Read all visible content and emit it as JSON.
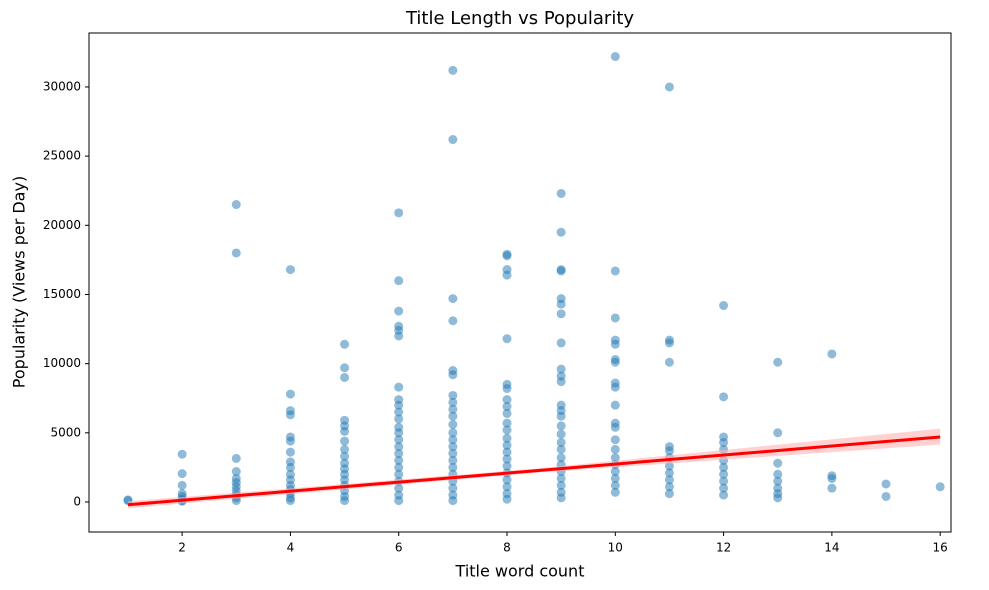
{
  "chart_data": {
    "type": "scatter",
    "title": "Title Length vs Popularity",
    "x_label": "Title word count",
    "y_label": "Popularity (Views per Day)",
    "color": "#1f77b4",
    "xlim": [
      0.28,
      16.2
    ],
    "ylim": [
      -2170,
      33900
    ],
    "xticks": [
      2,
      4,
      6,
      8,
      10,
      12,
      14,
      16
    ],
    "yticks": [
      0,
      5000,
      10000,
      15000,
      20000,
      25000,
      30000
    ],
    "x": [
      1,
      1,
      2,
      2,
      2,
      2,
      2,
      2,
      2,
      2,
      3,
      3,
      3,
      3,
      3,
      3,
      3,
      3,
      3,
      3,
      3,
      4,
      4,
      4,
      4,
      4,
      4,
      4,
      4,
      4,
      4,
      4,
      4,
      4,
      4,
      4,
      4,
      5,
      5,
      5,
      5,
      5,
      5,
      5,
      5,
      5,
      5,
      5,
      5,
      5,
      5,
      5,
      5,
      5,
      6,
      6,
      6,
      6,
      6,
      6,
      6,
      6,
      6,
      6,
      6,
      6,
      6,
      6,
      6,
      6,
      6,
      6,
      6,
      6,
      6,
      6,
      6,
      7,
      7,
      7,
      7,
      7,
      7,
      7,
      7,
      7,
      7,
      7,
      7,
      7,
      7,
      7,
      7,
      7,
      7,
      7,
      7,
      7,
      7,
      8,
      8,
      8,
      8,
      8,
      8,
      8,
      8,
      8,
      8,
      8,
      8,
      8,
      8,
      8,
      8,
      8,
      8,
      8,
      8,
      8,
      8,
      9,
      9,
      9,
      9,
      9,
      9,
      9,
      9,
      9,
      9,
      9,
      9,
      9,
      9,
      9,
      9,
      9,
      9,
      9,
      9,
      9,
      9,
      9,
      9,
      9,
      10,
      10,
      10,
      10,
      10,
      10,
      10,
      10,
      10,
      10,
      10,
      10,
      10,
      10,
      10,
      10,
      10,
      10,
      10,
      10,
      11,
      11,
      11,
      11,
      11,
      11,
      11,
      11,
      11,
      11,
      11,
      11,
      12,
      12,
      12,
      12,
      12,
      12,
      12,
      12,
      12,
      12,
      12,
      13,
      13,
      13,
      13,
      13,
      13,
      13,
      13,
      14,
      14,
      14,
      14,
      15,
      15,
      16
    ],
    "values": [
      150,
      100,
      3450,
      2050,
      1200,
      600,
      400,
      200,
      100,
      50,
      21500,
      18000,
      3150,
      2200,
      1700,
      1400,
      1100,
      800,
      500,
      300,
      100,
      16800,
      7800,
      6600,
      6300,
      4700,
      4400,
      3600,
      2900,
      2500,
      2000,
      1600,
      1200,
      900,
      600,
      300,
      100,
      11400,
      9700,
      9000,
      5900,
      5500,
      5100,
      4400,
      3800,
      3300,
      2800,
      2400,
      2000,
      1600,
      1200,
      800,
      400,
      100,
      20900,
      16000,
      13800,
      12700,
      12400,
      12000,
      8300,
      7400,
      7000,
      6500,
      6000,
      5400,
      5000,
      4500,
      4000,
      3500,
      3000,
      2500,
      2000,
      1500,
      1000,
      500,
      100,
      31200,
      26200,
      14700,
      13100,
      9500,
      9200,
      7700,
      7200,
      6700,
      6200,
      5600,
      5000,
      4500,
      4000,
      3500,
      3000,
      2500,
      2000,
      1500,
      1000,
      500,
      100,
      17900,
      17800,
      16800,
      16400,
      11800,
      8500,
      8200,
      7400,
      6900,
      6400,
      5700,
      5200,
      4600,
      4100,
      3600,
      3100,
      2600,
      2100,
      1600,
      1100,
      600,
      200,
      22300,
      19500,
      16800,
      16700,
      14700,
      14300,
      13600,
      11500,
      9600,
      9100,
      8700,
      7000,
      6600,
      6200,
      5500,
      4900,
      4300,
      3800,
      3200,
      2700,
      2200,
      1700,
      1200,
      700,
      300,
      32200,
      16700,
      13300,
      11700,
      11400,
      10300,
      10100,
      8600,
      8300,
      7000,
      5700,
      5400,
      4500,
      3800,
      3200,
      2700,
      2200,
      1700,
      1200,
      700,
      30000,
      11700,
      11500,
      10100,
      4000,
      3700,
      3200,
      2600,
      2100,
      1600,
      1100,
      600,
      14200,
      7600,
      4700,
      4300,
      3800,
      3000,
      2500,
      2000,
      1500,
      1000,
      500,
      10100,
      5000,
      2800,
      2000,
      1500,
      1000,
      600,
      300,
      10700,
      1900,
      1700,
      1000,
      1300,
      400,
      1100
    ],
    "trend": {
      "x": [
        1,
        8.5,
        16
      ],
      "values": [
        -200,
        2250,
        4700
      ],
      "lower": [
        -450,
        2100,
        4150
      ],
      "upper": [
        50,
        2400,
        5300
      ],
      "color": "#ff0000",
      "band_color": "#ffb3b3"
    }
  }
}
